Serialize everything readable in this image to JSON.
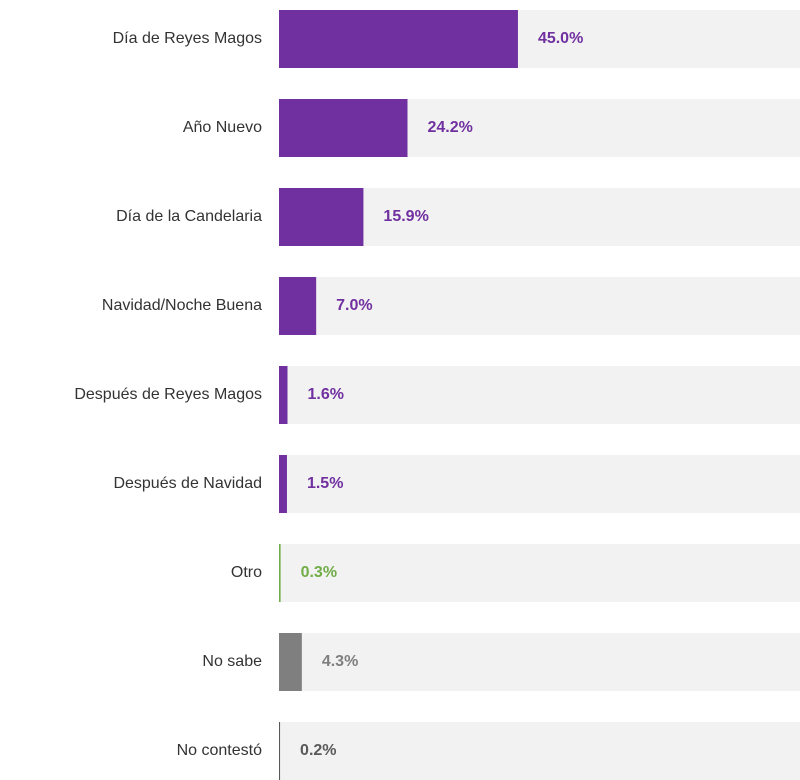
{
  "chart_data": {
    "type": "hbar",
    "categories": [
      "Día de Reyes Magos",
      "Año Nuevo",
      "Día de la Candelaria",
      "Navidad/Noche Buena",
      "Después de Reyes Magos",
      "Después de Navidad",
      "Otro",
      "No sabe",
      "No contestó"
    ],
    "values": [
      45.0,
      24.2,
      15.9,
      7.0,
      1.6,
      1.5,
      0.3,
      4.3,
      0.2
    ],
    "value_labels": [
      "45.0%",
      "24.2%",
      "15.9%",
      "7.0%",
      "1.6%",
      "1.5%",
      "0.3%",
      "4.3%",
      "0.2%"
    ],
    "colors": [
      "#7030a0",
      "#7030a0",
      "#7030a0",
      "#7030a0",
      "#7030a0",
      "#7030a0",
      "#70ad47",
      "#7f7f7f",
      "#595959"
    ],
    "xlim": [
      0,
      100
    ]
  }
}
